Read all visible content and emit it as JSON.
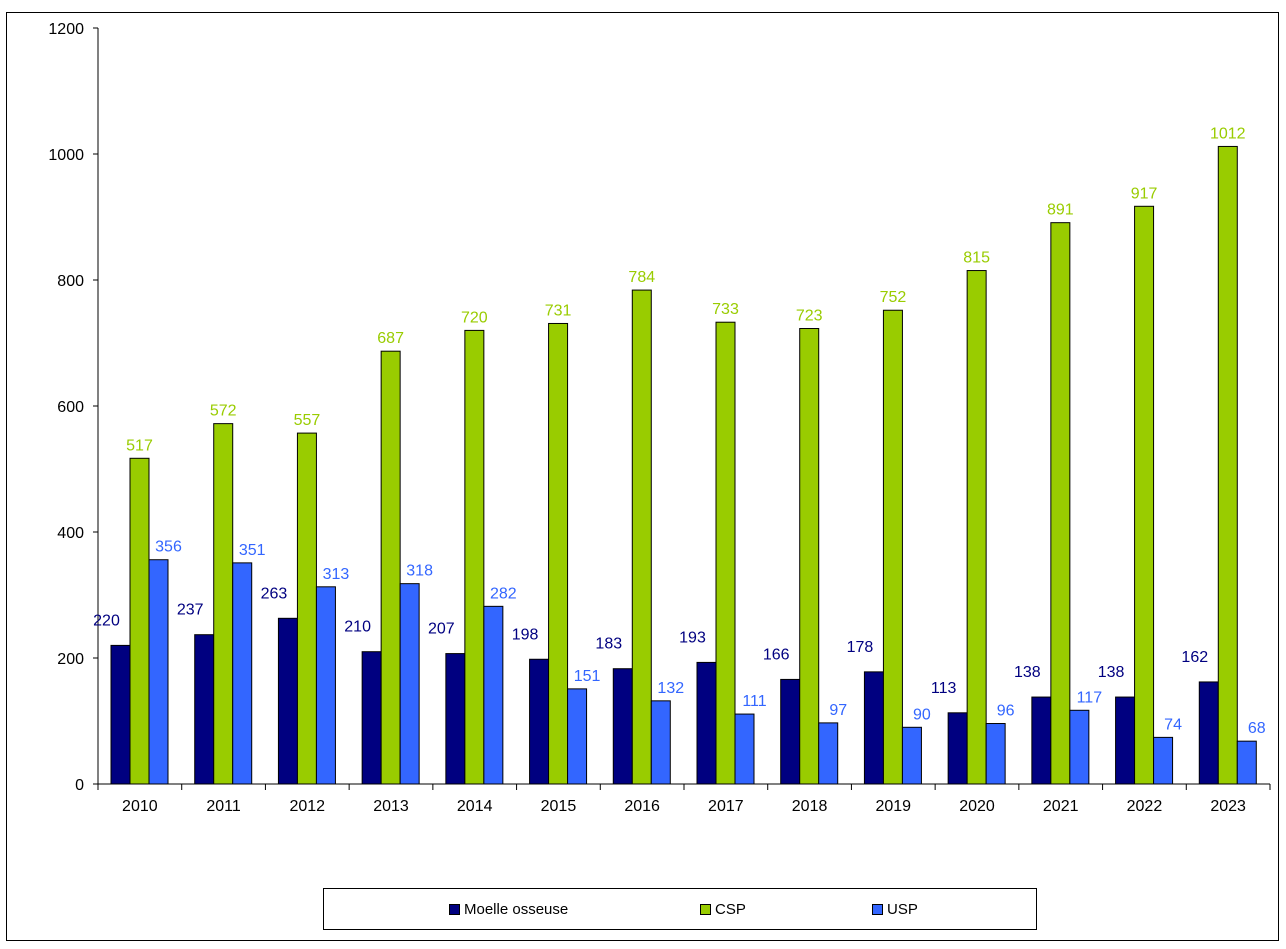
{
  "chart_data": {
    "type": "bar",
    "title": "",
    "xlabel": "",
    "ylabel": "",
    "ylim": [
      0,
      1200
    ],
    "yticks": [
      "0",
      "200",
      "400",
      "600",
      "800",
      "1000",
      "1200"
    ],
    "grid": false,
    "legend_position": "bottom",
    "categories": [
      "2010",
      "2011",
      "2012",
      "2013",
      "2014",
      "2015",
      "2016",
      "2017",
      "2018",
      "2019",
      "2020",
      "2021",
      "2022",
      "2023"
    ],
    "series": [
      {
        "name": "Moelle osseuse",
        "color": "#000080",
        "label_color": "#000080",
        "values": [
          220,
          237,
          263,
          210,
          207,
          198,
          183,
          193,
          166,
          178,
          113,
          138,
          138,
          162
        ]
      },
      {
        "name": "CSP",
        "color": "#99CC00",
        "label_color": "#99CC00",
        "values": [
          517,
          572,
          557,
          687,
          720,
          731,
          784,
          733,
          723,
          752,
          815,
          891,
          917,
          1012
        ]
      },
      {
        "name": "USP",
        "color": "#3366FF",
        "label_color": "#3366FF",
        "values": [
          356,
          351,
          313,
          318,
          282,
          151,
          132,
          111,
          97,
          90,
          96,
          117,
          74,
          68
        ]
      }
    ]
  }
}
